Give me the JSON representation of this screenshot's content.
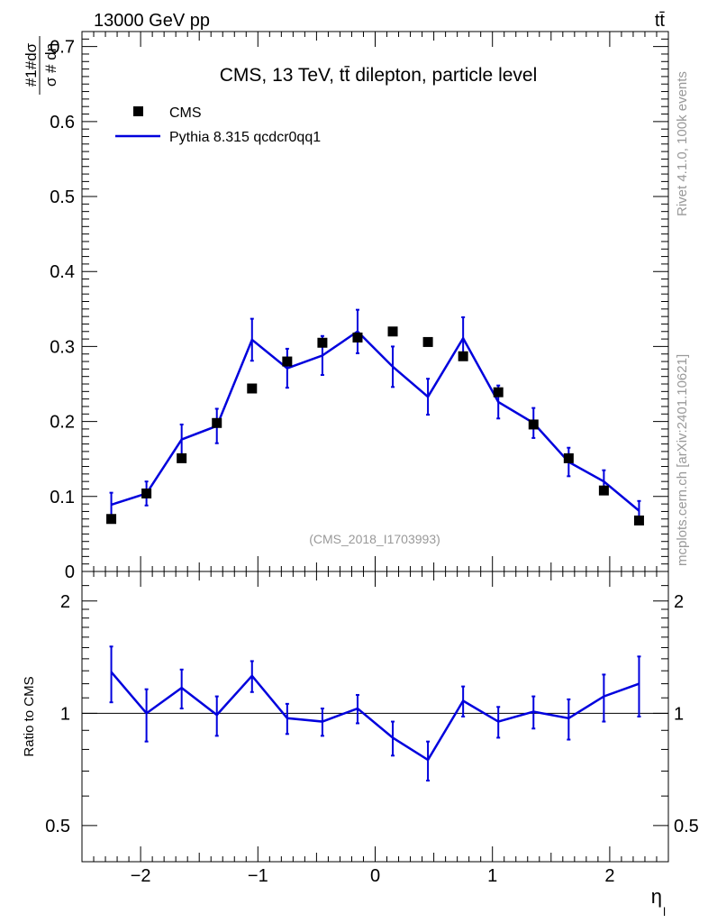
{
  "header": {
    "left_label": "13000 GeV pp",
    "right_label": "tt̄"
  },
  "side_labels": {
    "rivet": "Rivet 4.1.0,  100k events",
    "mcplots": "mcplots.cern.ch [arXiv:2401.10621]"
  },
  "chart_data": {
    "type": "scatter",
    "title": "CMS, 13 TeV, tt̄ dilepton, particle level",
    "watermark": "(CMS_2018_I1703993)",
    "xlabel": "η",
    "xlabel_sub": "l",
    "ylabel_main": "1/σ dσ/dη_l",
    "ylabel_ratio": "Ratio to CMS",
    "xlim": [
      -2.5,
      2.5
    ],
    "ylim": [
      0,
      0.72
    ],
    "ratio_ylim": [
      0.4,
      2.4
    ],
    "xticks": [
      -2,
      -1,
      0,
      1,
      2
    ],
    "xtick_labels": [
      "−2",
      "−1",
      "0",
      "1",
      "2"
    ],
    "yticks": [
      0,
      0.1,
      0.2,
      0.3,
      0.4,
      0.5,
      0.6,
      0.7
    ],
    "ytick_labels": [
      "0",
      "0.1",
      "0.2",
      "0.3",
      "0.4",
      "0.5",
      "0.6",
      "0.7"
    ],
    "ratio_yticks": [
      0.5,
      1,
      2
    ],
    "ratio_ytick_labels": [
      "0.5",
      "1",
      "2"
    ],
    "legend": {
      "position": "top-left"
    },
    "x": [
      -2.25,
      -1.95,
      -1.65,
      -1.35,
      -1.05,
      -0.75,
      -0.45,
      -0.15,
      0.15,
      0.45,
      0.75,
      1.05,
      1.35,
      1.65,
      1.95,
      2.25
    ],
    "series": [
      {
        "name": "CMS",
        "style": "markers",
        "color": "#000000",
        "values": [
          0.07,
          0.104,
          0.151,
          0.198,
          0.244,
          0.28,
          0.305,
          0.312,
          0.32,
          0.306,
          0.287,
          0.239,
          0.196,
          0.151,
          0.108,
          0.068
        ]
      },
      {
        "name": "Pythia 8.315 qcdcr0qq1",
        "style": "line",
        "color": "#0000dd",
        "values": [
          0.089,
          0.104,
          0.176,
          0.194,
          0.309,
          0.271,
          0.288,
          0.32,
          0.273,
          0.233,
          0.311,
          0.226,
          0.198,
          0.146,
          0.12,
          0.081
        ],
        "err_up": [
          0.016,
          0.016,
          0.02,
          0.023,
          0.028,
          0.026,
          0.026,
          0.029,
          0.027,
          0.024,
          0.028,
          0.022,
          0.02,
          0.019,
          0.015,
          0.013
        ],
        "err_down": [
          0.016,
          0.016,
          0.02,
          0.023,
          0.028,
          0.026,
          0.026,
          0.029,
          0.027,
          0.024,
          0.028,
          0.022,
          0.02,
          0.019,
          0.015,
          0.013
        ],
        "ratio": [
          1.29,
          1.0,
          1.17,
          0.99,
          1.26,
          0.97,
          0.95,
          1.03,
          0.86,
          0.75,
          1.08,
          0.95,
          1.01,
          0.97,
          1.11,
          1.2
        ],
        "ratio_err": [
          0.22,
          0.16,
          0.14,
          0.12,
          0.12,
          0.09,
          0.08,
          0.09,
          0.09,
          0.09,
          0.1,
          0.09,
          0.1,
          0.12,
          0.16,
          0.22
        ]
      }
    ]
  }
}
